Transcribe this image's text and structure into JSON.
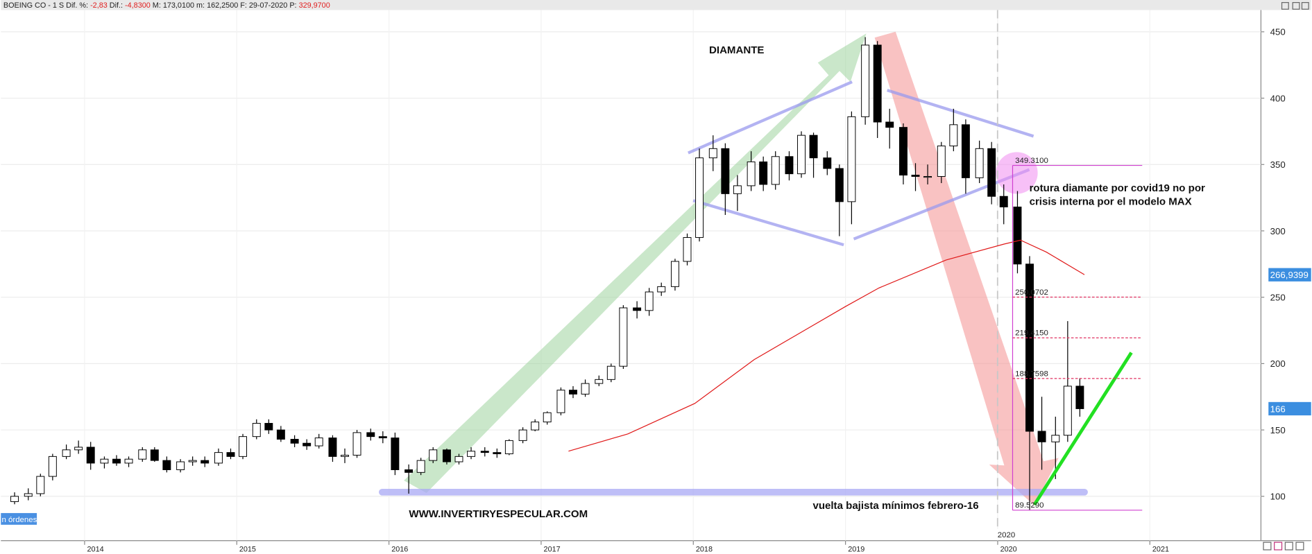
{
  "header": {
    "symbol": "BOEING CO - 1 S",
    "items": [
      {
        "key": "Dif. %:",
        "val": "-2,83"
      },
      {
        "key": "Dif.:",
        "val": "-4,8300"
      },
      {
        "key": "M:",
        "val": "173,0100"
      },
      {
        "key": "m:",
        "val": "162,2500"
      },
      {
        "key": "F:",
        "val": "29-07-2020"
      },
      {
        "key": "P:",
        "val": "329,9700"
      }
    ]
  },
  "orders_button": "n órdenes",
  "chart_data": {
    "type": "candlestick",
    "x": [
      2013.54,
      2013.63,
      2013.71,
      2013.79,
      2013.88,
      2013.96,
      2014.04,
      2014.13,
      2014.21,
      2014.29,
      2014.38,
      2014.46,
      2014.54,
      2014.63,
      2014.71,
      2014.79,
      2014.88,
      2014.96,
      2015.04,
      2015.13,
      2015.21,
      2015.29,
      2015.38,
      2015.46,
      2015.54,
      2015.63,
      2015.71,
      2015.79,
      2015.88,
      2015.96,
      2016.04,
      2016.13,
      2016.21,
      2016.29,
      2016.38,
      2016.46,
      2016.54,
      2016.63,
      2016.71,
      2016.79,
      2016.88,
      2016.96,
      2017.04,
      2017.13,
      2017.21,
      2017.29,
      2017.38,
      2017.46,
      2017.54,
      2017.63,
      2017.71,
      2017.79,
      2017.88,
      2017.96,
      2018.04,
      2018.13,
      2018.21,
      2018.29,
      2018.38,
      2018.46,
      2018.54,
      2018.63,
      2018.71,
      2018.79,
      2018.88,
      2018.96,
      2019.04,
      2019.13,
      2019.21,
      2019.29,
      2019.38,
      2019.46,
      2019.54,
      2019.63,
      2019.71,
      2019.79,
      2019.88,
      2019.96,
      2020.04,
      2020.13,
      2020.21,
      2020.29,
      2020.38,
      2020.46,
      2020.54
    ],
    "open": [
      96,
      100,
      102,
      115,
      130,
      135,
      137,
      125,
      128,
      125,
      128,
      135,
      127,
      120,
      126,
      127,
      125,
      133,
      130,
      145,
      155,
      150,
      143,
      140,
      138,
      144,
      130,
      131,
      148,
      145,
      144,
      120,
      118,
      127,
      135,
      126,
      130,
      134,
      133,
      132,
      142,
      150,
      156,
      163,
      180,
      177,
      185,
      188,
      198,
      242,
      240,
      254,
      258,
      277,
      295,
      355,
      362,
      328,
      334,
      352,
      335,
      356,
      343,
      372,
      355,
      347,
      322,
      386,
      440,
      382,
      378,
      342,
      341,
      341,
      364,
      380,
      340,
      362,
      326,
      318,
      275,
      149,
      141,
      146,
      183
    ],
    "high": [
      103,
      106,
      117,
      132,
      139,
      142,
      141,
      130,
      131,
      130,
      137,
      137,
      130,
      128,
      130,
      130,
      136,
      136,
      147,
      158,
      158,
      153,
      146,
      143,
      147,
      146,
      136,
      150,
      151,
      149,
      148,
      124,
      129,
      137,
      136,
      132,
      137,
      137,
      136,
      143,
      152,
      158,
      164,
      182,
      183,
      188,
      191,
      200,
      244,
      247,
      257,
      261,
      279,
      298,
      362,
      372,
      366,
      342,
      360,
      356,
      360,
      360,
      375,
      374,
      360,
      350,
      390,
      446,
      443,
      392,
      381,
      351,
      350,
      367,
      392,
      384,
      368,
      367,
      335,
      330,
      281,
      175,
      160,
      232,
      189
    ],
    "low": [
      94,
      97,
      100,
      112,
      128,
      132,
      120,
      121,
      123,
      122,
      126,
      126,
      118,
      118,
      123,
      122,
      123,
      128,
      128,
      143,
      147,
      141,
      137,
      135,
      136,
      126,
      125,
      129,
      142,
      140,
      116,
      102,
      116,
      125,
      124,
      124,
      128,
      130,
      129,
      131,
      140,
      149,
      154,
      161,
      174,
      175,
      183,
      186,
      196,
      234,
      236,
      251,
      255,
      274,
      292,
      345,
      312,
      315,
      330,
      330,
      331,
      338,
      340,
      340,
      342,
      296,
      305,
      380,
      370,
      362,
      335,
      330,
      335,
      336,
      360,
      328,
      336,
      320,
      305,
      268,
      89.53,
      120,
      113,
      141,
      160
    ],
    "close": [
      100,
      102,
      115,
      130,
      135,
      137,
      125,
      128,
      125,
      128,
      135,
      127,
      120,
      126,
      127,
      125,
      133,
      130,
      145,
      155,
      150,
      143,
      140,
      138,
      144,
      130,
      131,
      148,
      145,
      144,
      120,
      118,
      127,
      135,
      126,
      130,
      134,
      133,
      132,
      142,
      150,
      156,
      163,
      180,
      177,
      185,
      188,
      198,
      242,
      240,
      254,
      258,
      277,
      295,
      355,
      362,
      328,
      334,
      352,
      335,
      356,
      343,
      372,
      355,
      347,
      322,
      386,
      440,
      382,
      378,
      342,
      341,
      341,
      364,
      380,
      340,
      362,
      326,
      318,
      275,
      149,
      141,
      146,
      183,
      166
    ],
    "up_color": "#ffffff",
    "down_color": "#000000",
    "moving_average": {
      "color": "#e01818",
      "x": [
        2017.18,
        2017.57,
        2018.01,
        2018.4,
        2018.73,
        2019.0,
        2019.22,
        2019.66,
        2020.04,
        2020.15,
        2020.32,
        2020.57
      ],
      "values": [
        134,
        147,
        170,
        203,
        225,
        243,
        257,
        278,
        290,
        293,
        284,
        267
      ]
    },
    "fib_levels": [
      {
        "value": 349.31,
        "label": "349.3100"
      },
      {
        "value": 250.0702,
        "label": "250.0702"
      },
      {
        "value": 219.415,
        "label": "219.4150"
      },
      {
        "value": 188.7598,
        "label": "188.7598"
      },
      {
        "value": 89.529,
        "label": "89.5290"
      }
    ],
    "price_markers": [
      {
        "value": 266.9399,
        "label": "266,9399"
      },
      166
    ],
    "cursor_label": "2020",
    "annotations": [
      "DIAMANTE",
      "rotura diamante por covid19 no por",
      "crisis interna por el modelo MAX",
      "WWW.INVERTIRYESPECULAR.COM",
      "vuelta bajista mínimos febrero-16"
    ],
    "xlim": [
      2013.45,
      2021.73
    ],
    "xticks": [
      2014,
      2015,
      2016,
      2017,
      2018,
      2019,
      2020,
      2021
    ],
    "ylim": [
      66.6,
      466.4
    ],
    "yticks": [
      100,
      150,
      200,
      250,
      300,
      350,
      400,
      450
    ],
    "grid": true
  }
}
